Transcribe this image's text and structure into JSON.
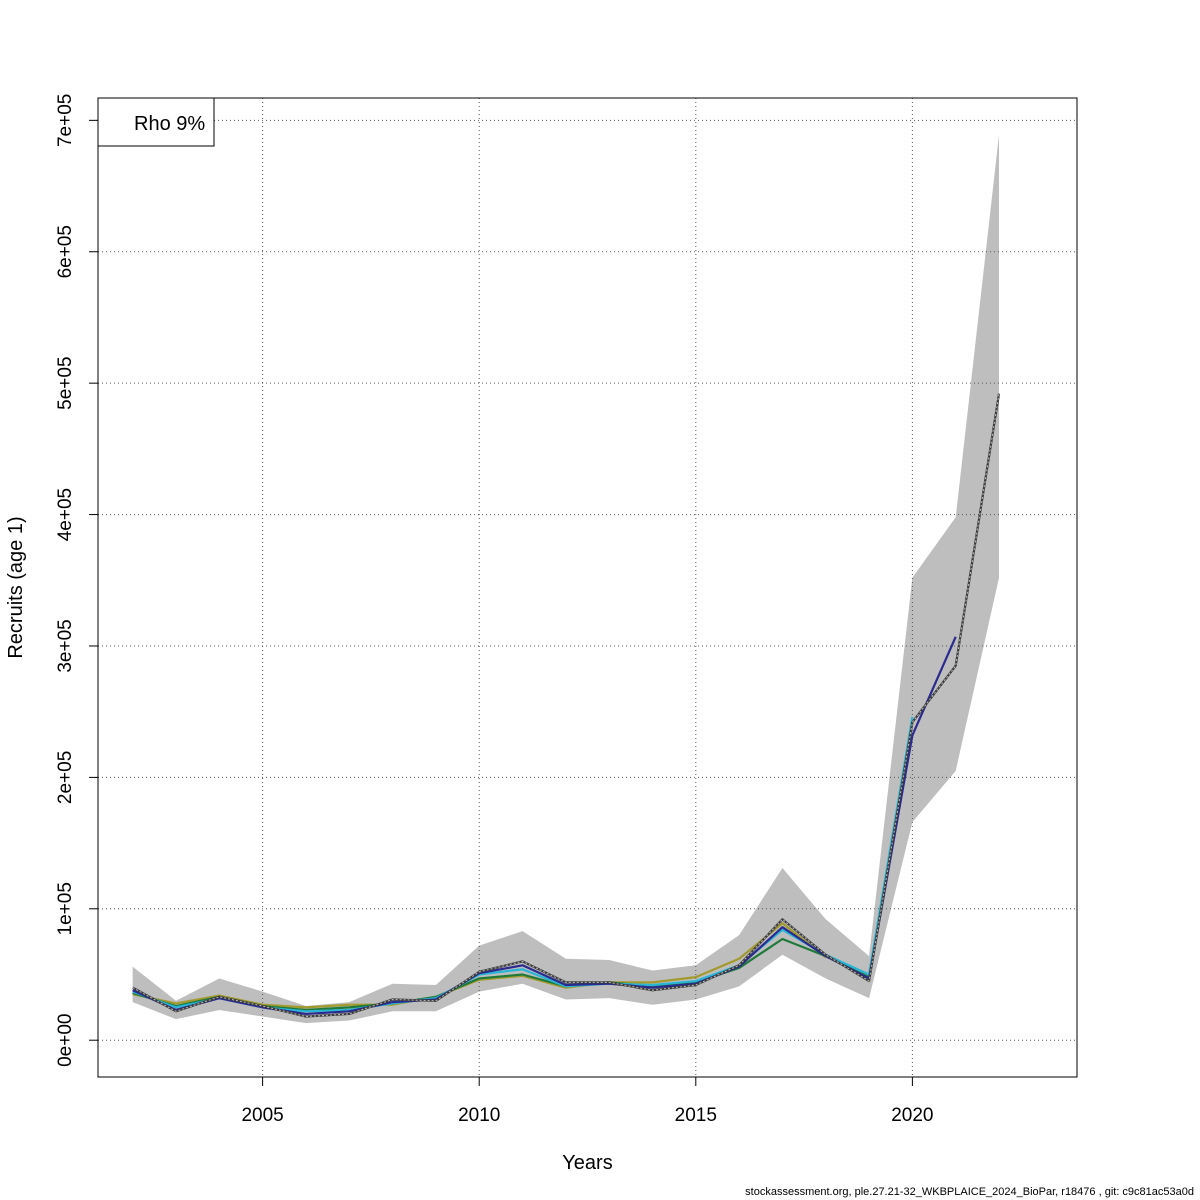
{
  "chart_data": {
    "type": "line",
    "xlabel": "Years",
    "ylabel": "Recruits (age 1)",
    "xlim": [
      2001.2,
      2023.8
    ],
    "ylim": [
      -28000,
      717000
    ],
    "x_ticks": [
      2005,
      2010,
      2015,
      2020
    ],
    "x_tick_labels": [
      "2005",
      "2010",
      "2015",
      "2020"
    ],
    "y_ticks": [
      0,
      100000,
      200000,
      300000,
      400000,
      500000,
      600000,
      700000
    ],
    "y_tick_labels": [
      "0e+00",
      "1e+05",
      "2e+05",
      "3e+05",
      "4e+05",
      "5e+05",
      "6e+05",
      "7e+05"
    ],
    "grid": true,
    "legend": {
      "placement": "top-left",
      "text": "Rho 9%"
    },
    "band": {
      "x": [
        2002,
        2003,
        2004,
        2005,
        2006,
        2007,
        2008,
        2009,
        2010,
        2011,
        2012,
        2013,
        2014,
        2015,
        2016,
        2017,
        2018,
        2019,
        2020,
        2021,
        2022
      ],
      "upper": [
        56000,
        30000,
        47000,
        37000,
        26000,
        29000,
        43000,
        42000,
        72000,
        83000,
        62000,
        61000,
        53000,
        57000,
        80000,
        131000,
        92000,
        64000,
        352000,
        398000,
        689000
      ],
      "lower": [
        29000,
        16000,
        23000,
        18000,
        13000,
        15000,
        22000,
        22000,
        37000,
        43000,
        31000,
        32000,
        27000,
        31000,
        41000,
        65000,
        47000,
        32000,
        166000,
        205000,
        352000
      ],
      "color": "#bebebe"
    },
    "series": [
      {
        "color": "#3a3a3a",
        "dashed_overlay": true,
        "x": [
          2002,
          2003,
          2004,
          2005,
          2006,
          2007,
          2008,
          2009,
          2010,
          2011,
          2012,
          2013,
          2014,
          2015,
          2016,
          2017,
          2018,
          2019,
          2020,
          2021,
          2022
        ],
        "values": [
          40000,
          22000,
          33000,
          26000,
          18000,
          20000,
          31000,
          30000,
          52000,
          60000,
          44000,
          44000,
          38000,
          42000,
          57000,
          92000,
          65000,
          45000,
          242000,
          285000,
          492000
        ]
      },
      {
        "color": "#2b2a8f",
        "x": [
          2002,
          2003,
          2004,
          2005,
          2006,
          2007,
          2008,
          2009,
          2010,
          2011,
          2012,
          2013,
          2014,
          2015,
          2016,
          2017,
          2018,
          2019,
          2020,
          2021
        ],
        "values": [
          38000,
          23000,
          32000,
          25000,
          20000,
          22000,
          29000,
          31000,
          51000,
          57000,
          42000,
          43000,
          40000,
          43000,
          56000,
          86000,
          64000,
          47000,
          232000,
          307000
        ]
      },
      {
        "color": "#29b6d6",
        "x": [
          2002,
          2003,
          2004,
          2005,
          2006,
          2007,
          2008,
          2009,
          2010,
          2011,
          2012,
          2013,
          2014,
          2015,
          2016,
          2017,
          2018,
          2019,
          2020
        ],
        "values": [
          37000,
          25000,
          32000,
          25000,
          22000,
          23000,
          28000,
          32000,
          50000,
          54000,
          41000,
          43000,
          42000,
          45000,
          57000,
          84000,
          65000,
          50000,
          246000
        ]
      },
      {
        "color": "#1f7a3a",
        "x": [
          2002,
          2003,
          2004,
          2005,
          2006,
          2007,
          2008,
          2009,
          2010,
          2011,
          2012,
          2013,
          2014,
          2015,
          2016,
          2017,
          2018,
          2019
        ],
        "values": [
          36000,
          26000,
          33000,
          26000,
          23000,
          25000,
          28000,
          33000,
          47000,
          50000,
          41000,
          44000,
          41000,
          44000,
          55000,
          77000,
          64000,
          48000
        ]
      },
      {
        "color": "#a39a2e",
        "x": [
          2002,
          2003,
          2004,
          2005,
          2006,
          2007,
          2008,
          2009,
          2010,
          2011,
          2012,
          2013,
          2014,
          2015,
          2016,
          2017,
          2018
        ],
        "values": [
          35000,
          28000,
          34000,
          27000,
          25000,
          27000,
          27000,
          33000,
          46000,
          49000,
          40000,
          44000,
          44000,
          48000,
          62000,
          89000,
          63000
        ]
      }
    ]
  },
  "footer": "stockassessment.org, ple.27.21-32_WKBPLAICE_2024_BioPar, r18476 , git: c9c81ac53a0d"
}
